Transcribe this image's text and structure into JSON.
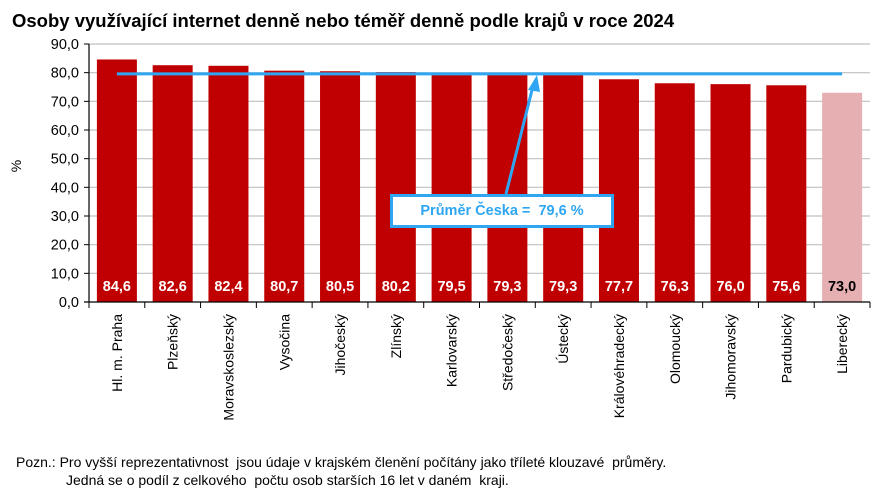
{
  "title": "Osoby využívající internet denně nebo téměř denně podle krajů v roce 2024",
  "note": {
    "label": "Pozn.:",
    "line1": "Pro vyšší reprezentativnost  jsou údaje v krajském členění počítány jako tříleté klouzavé  průměry.",
    "line2": "Jedná se o podíl z celkového  počtu osob starších 16 let v daném  kraji."
  },
  "callout": {
    "text": "Průměr Česka =  79,6 %"
  },
  "colors": {
    "bar": "#c00000",
    "bar_highlight": "#e6b0b3",
    "average_line": "#2ea6f2",
    "grid": "#c0c0c0"
  },
  "chart_data": {
    "type": "bar",
    "title": "Osoby využívající internet denně nebo téměř denně podle krajů v roce 2024",
    "xlabel": "",
    "ylabel": "%",
    "ylim": [
      0,
      90
    ],
    "yticks": [
      "0,0",
      "10,0",
      "20,0",
      "30,0",
      "40,0",
      "50,0",
      "60,0",
      "70,0",
      "80,0",
      "90,0"
    ],
    "grid": true,
    "legend": null,
    "categories": [
      "Hl. m. Praha",
      "Plzeňský",
      "Moravskoslezský",
      "Vysočina",
      "Jihočeský",
      "Zlínský",
      "Karlovarský",
      "Středočeský",
      "Ústecký",
      "Královéhradecký",
      "Olomoucký",
      "Jihomoravský",
      "Pardubický",
      "Liberecký"
    ],
    "values": [
      84.6,
      82.6,
      82.4,
      80.7,
      80.5,
      80.2,
      79.5,
      79.3,
      79.3,
      77.7,
      76.3,
      76.0,
      75.6,
      73.0
    ],
    "value_labels": [
      "84,6",
      "82,6",
      "82,4",
      "80,7",
      "80,5",
      "80,2",
      "79,5",
      "79,3",
      "79,3",
      "77,7",
      "76,3",
      "76,0",
      "75,6",
      "73,0"
    ],
    "highlighted": [
      "Liberecký"
    ],
    "reference_line": {
      "label": "Průměr Česka",
      "value": 79.6
    },
    "annotations": [
      "Průměr Česka =  79,6 %"
    ]
  }
}
